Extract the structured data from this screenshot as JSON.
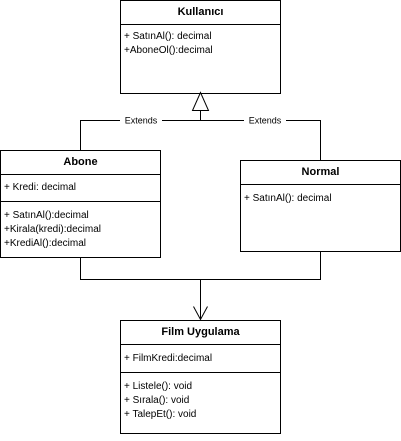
{
  "classes": {
    "kullanici": {
      "name": "Kullanıcı",
      "attributes": [],
      "operations": [
        "+ SatınAl(): decimal",
        "+AboneOl():decimal"
      ]
    },
    "abone": {
      "name": "Abone",
      "attributes": [
        "+ Kredi: decimal"
      ],
      "operations": [
        "+ SatınAl():decimal",
        "+Kirala(kredi):decimal",
        "+KrediAl():decimal"
      ]
    },
    "normal": {
      "name": "Normal",
      "attributes": [],
      "operations": [
        "+ SatınAl(): decimal"
      ]
    },
    "film": {
      "name": "Film Uygulama",
      "attributes": [
        "+ FilmKredi:decimal"
      ],
      "operations": [
        "+ Listele(): void",
        "+ Sırala(): void",
        "+ TalepEt(): void"
      ]
    }
  },
  "relations": {
    "abone_extends": "Extends",
    "normal_extends": "Extends"
  },
  "colors": {
    "stroke": "#000000",
    "fill": "#ffffff"
  }
}
